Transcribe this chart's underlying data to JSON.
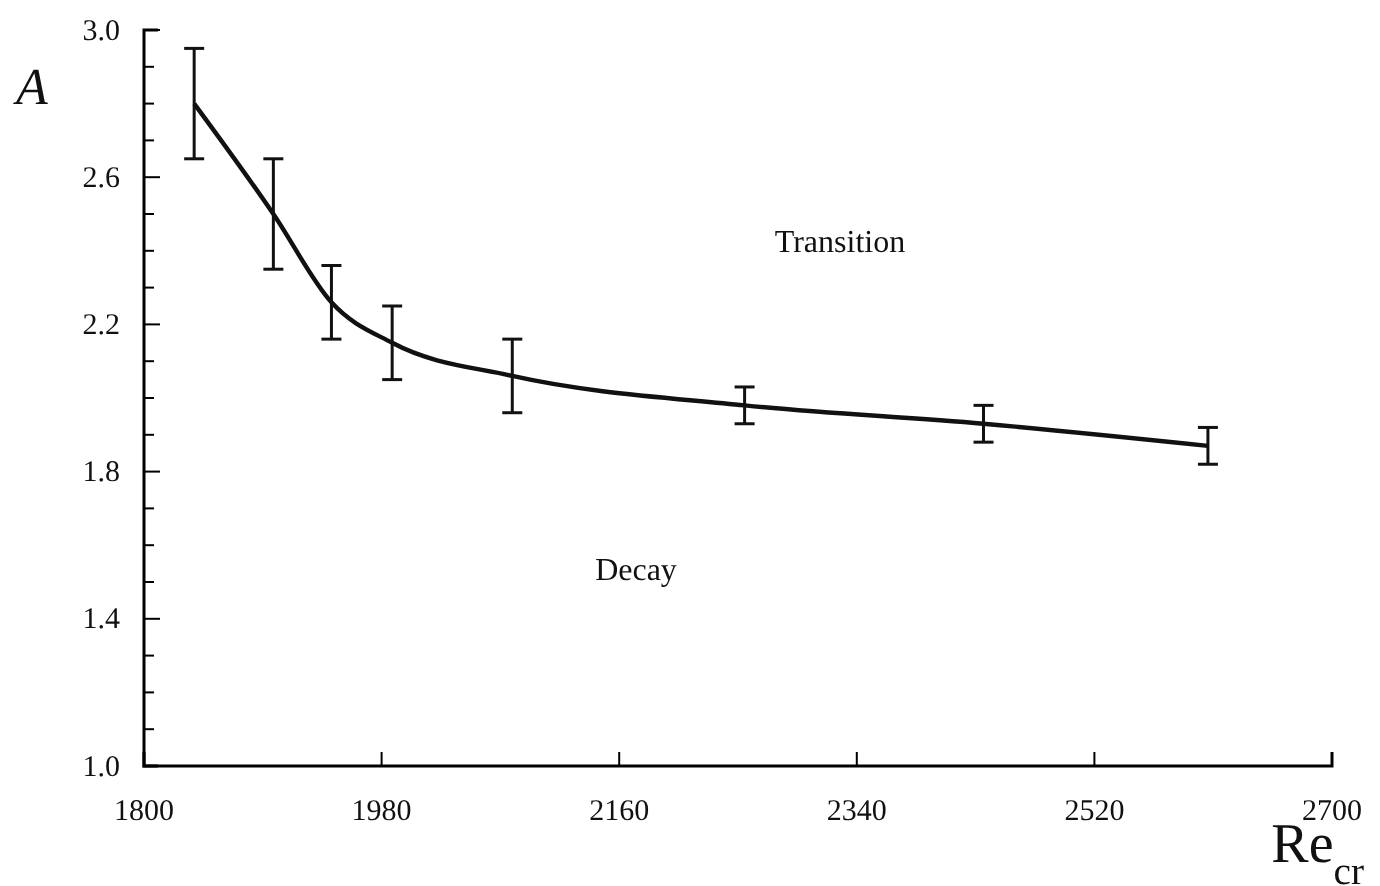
{
  "chart_data": {
    "type": "line",
    "xlabel": "Re$_{cr}$",
    "ylabel": "A",
    "x": [
      1838,
      1898,
      1942,
      1988,
      2079,
      2255,
      2436,
      2606
    ],
    "series": [
      {
        "color": "#111111",
        "values": [
          2.8,
          2.5,
          2.26,
          2.15,
          2.06,
          1.98,
          1.93,
          1.87
        ],
        "errors": [
          0.15,
          0.15,
          0.1,
          0.1,
          0.1,
          0.05,
          0.05,
          0.05
        ]
      }
    ],
    "xlim": [
      1800,
      2700
    ],
    "xticks": [
      1800,
      1980,
      2160,
      2340,
      2520,
      2700
    ],
    "ylim": [
      1.0,
      3.0
    ],
    "yticks": [
      {
        "value": 1.0,
        "label": "1.0"
      },
      {
        "value": 1.1,
        "label": null
      },
      {
        "value": 1.2,
        "label": null
      },
      {
        "value": 1.3,
        "label": null
      },
      {
        "value": 1.4,
        "label": "1.4"
      },
      {
        "value": 1.5,
        "label": null
      },
      {
        "value": 1.6,
        "label": null
      },
      {
        "value": 1.7,
        "label": null
      },
      {
        "value": 1.8,
        "label": "1.8"
      },
      {
        "value": 1.9,
        "label": null
      },
      {
        "value": 2.0,
        "label": null
      },
      {
        "value": 2.1,
        "label": null
      },
      {
        "value": 2.2,
        "label": "2.2"
      },
      {
        "value": 2.3,
        "label": null
      },
      {
        "value": 2.4,
        "label": null
      },
      {
        "value": 2.5,
        "label": null
      },
      {
        "value": 2.6,
        "label": "2.6"
      },
      {
        "value": 2.7,
        "label": null
      },
      {
        "value": 2.8,
        "label": null
      },
      {
        "value": 2.9,
        "label": null
      },
      {
        "value": 3.0,
        "label": "3.0"
      }
    ],
    "grid": false,
    "marker": "none",
    "line_style": "solid",
    "annotations": [
      "Transition",
      "Decay"
    ]
  }
}
